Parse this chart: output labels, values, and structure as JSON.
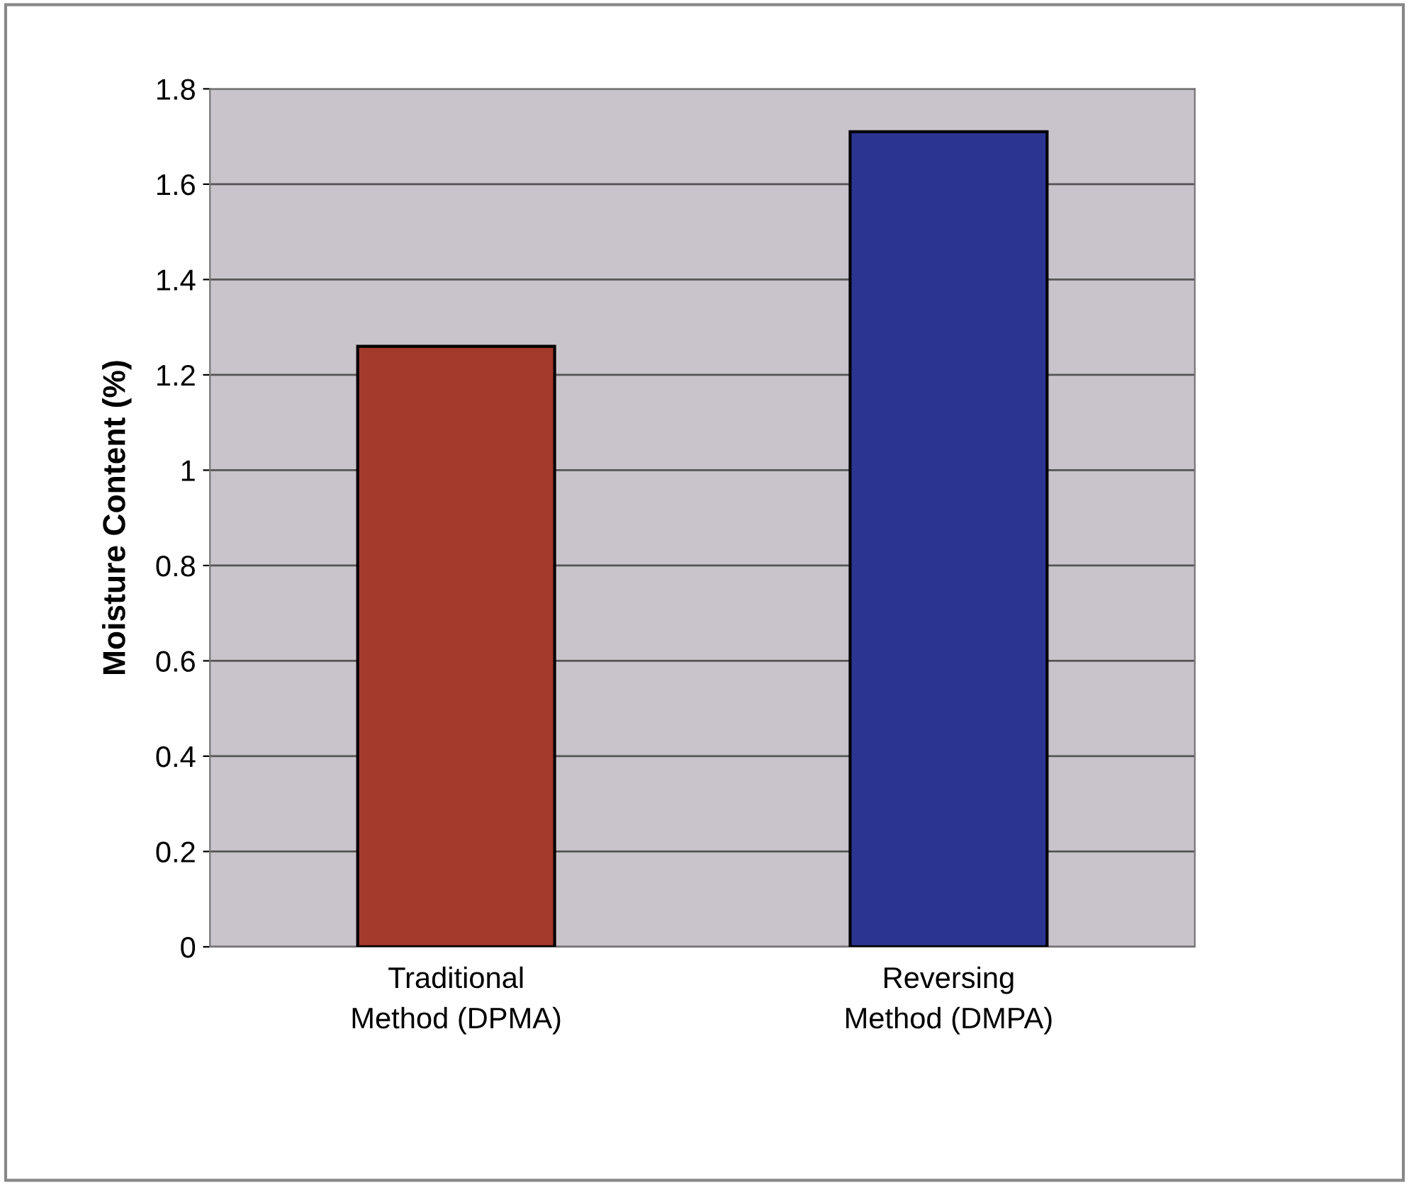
{
  "chart_data": {
    "type": "bar",
    "ylabel": "Moisture Content (%)",
    "categories": [
      "Traditional\nMethod (DPMA)",
      "Reversing\nMethod (DMPA)"
    ],
    "values": [
      1.26,
      1.71
    ],
    "colors": [
      "#a33a2c",
      "#2b3591"
    ],
    "ylim": [
      0,
      1.8
    ],
    "yticks": [
      0,
      {
        "value": 0.2,
        "label": "0.2"
      },
      {
        "value": 0.4,
        "label": "0.4"
      },
      {
        "value": 0.6,
        "label": "0.6"
      },
      {
        "value": 0.8,
        "label": "0.8"
      },
      1,
      {
        "value": 1.2,
        "label": "1.2"
      },
      {
        "value": 1.4,
        "label": "1.4"
      },
      {
        "value": 1.6,
        "label": "1.6"
      },
      {
        "value": 1.8,
        "label": "1.8"
      }
    ],
    "grid": "y",
    "legend": false
  }
}
